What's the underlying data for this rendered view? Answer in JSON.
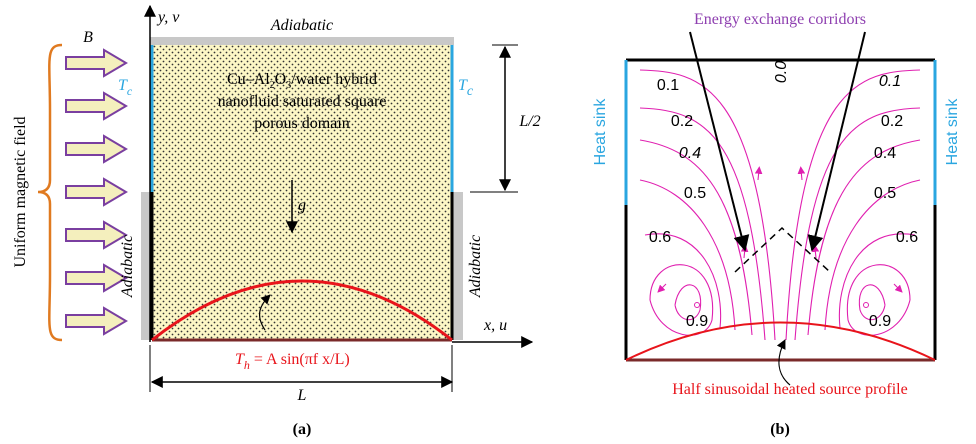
{
  "panel_a": {
    "field_label": "Uniform magnetic field",
    "field_symbol": "B",
    "y_axis": "y, v",
    "x_axis": "x, u",
    "top_wall": "Adiabatic",
    "left_wall": "Adiabatic",
    "right_wall": "Adiabatic",
    "cold_T": "T",
    "cold_sub": "c",
    "domain_text": [
      [
        "Cu–Al",
        "2",
        "O",
        "3",
        "/water hybrid"
      ],
      "nanofluid saturated square",
      "porous domain"
    ],
    "gravity": "g",
    "half_length": "L/2",
    "length": "L",
    "hot_T": "T",
    "hot_sub": "h",
    "hot_formula": " = A sin(πf x/L)",
    "label": "(a)"
  },
  "panel_b": {
    "title": "Energy exchange corridors",
    "left_sink": "Heat sink",
    "right_sink": "Heat sink",
    "source": "Half sinusoidal heated source profile",
    "label": "(b)",
    "contour_labels": [
      "0.1",
      "0.1",
      "0.0",
      "0.2",
      "0.2",
      "0.4",
      "0.4",
      "0.5",
      "0.5",
      "0.6",
      "0.6",
      "0.9",
      "0.9"
    ]
  }
}
